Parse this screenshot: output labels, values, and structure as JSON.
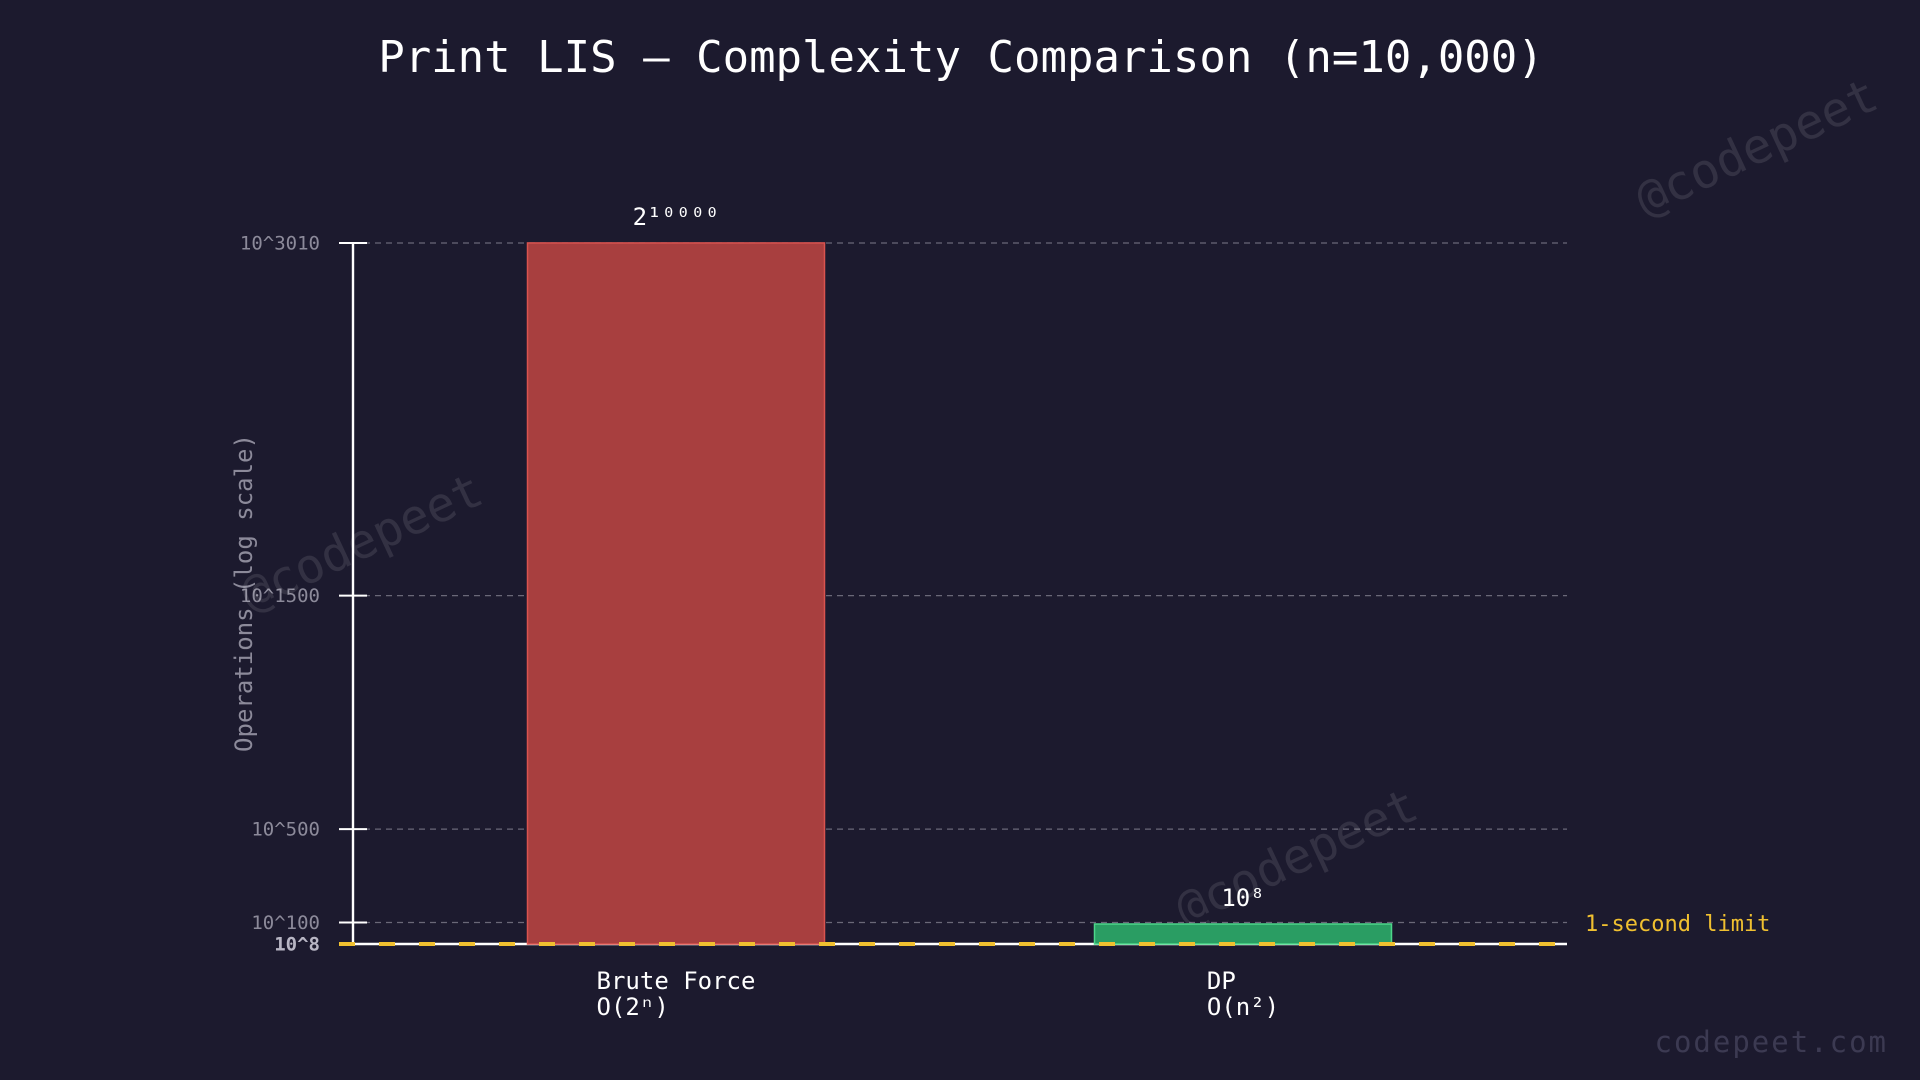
{
  "chart_data": {
    "type": "bar",
    "title": "Print LIS — Complexity Comparison (n=10,000)",
    "y_label": "Operations (log scale)",
    "log_scale": true,
    "categories": [
      "Brute Force",
      "DP"
    ],
    "complexities": [
      "O(2ⁿ)",
      "O(n²)"
    ],
    "values": [
      3010.3,
      8
    ],
    "value_labels": [
      "2¹⁰⁰⁰⁰",
      "10⁸"
    ],
    "colors": [
      "#a83f3f",
      "#2a9d63"
    ],
    "edge_colors": [
      "#d9534f",
      "#4cd68a"
    ],
    "ylim": [
      8,
      3010
    ],
    "yticks": [
      {
        "value": 3010,
        "label": "10^3010"
      },
      {
        "value": 1500,
        "label": "10^1500"
      },
      {
        "value": 500,
        "label": "10^500"
      },
      {
        "value": 100,
        "label": "10^100"
      },
      {
        "value": 8,
        "label": "10^8"
      }
    ],
    "grid": true,
    "reference_line": {
      "value": 8,
      "label": "1-second limit",
      "color": "#f0c030"
    },
    "watermark": "@codepeet",
    "footer": "codepeet.com"
  }
}
